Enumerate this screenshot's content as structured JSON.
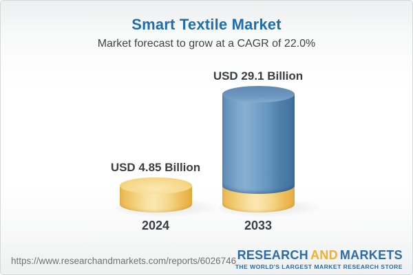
{
  "header": {
    "title": "Smart Textile Market",
    "subtitle": "Market forecast to grow at a CAGR of 22.0%"
  },
  "chart_data": {
    "type": "bar",
    "variant": "3d-cylinder",
    "title": "Smart Textile Market",
    "subtitle": "Market forecast to grow at a CAGR of 22.0%",
    "categories": [
      "2024",
      "2033"
    ],
    "values": [
      4.85,
      29.1
    ],
    "unit": "USD Billion",
    "value_labels": [
      "USD 4.85 Billion",
      "USD 29.1 Billion"
    ],
    "cagr_percent": 22.0,
    "legend": "none",
    "grid": false,
    "axes_hidden": true,
    "colors": {
      "bar_2024": "#f6d88c",
      "bar_2033": "#74a0c8",
      "bar_2033_base_overlay": "#f6d88c",
      "title_blue": "#1e6dac",
      "label_dark": "#3a3d42"
    }
  },
  "footer": {
    "source_url": "https://www.researchandmarkets.com/reports/6026746",
    "logo": {
      "part1": "RESEARCH",
      "part2": "AND",
      "part3": "MARKETS",
      "tagline": "THE WORLD'S LARGEST MARKET RESEARCH STORE",
      "blue": "#2c6ba6",
      "gold": "#f2b02e"
    }
  }
}
